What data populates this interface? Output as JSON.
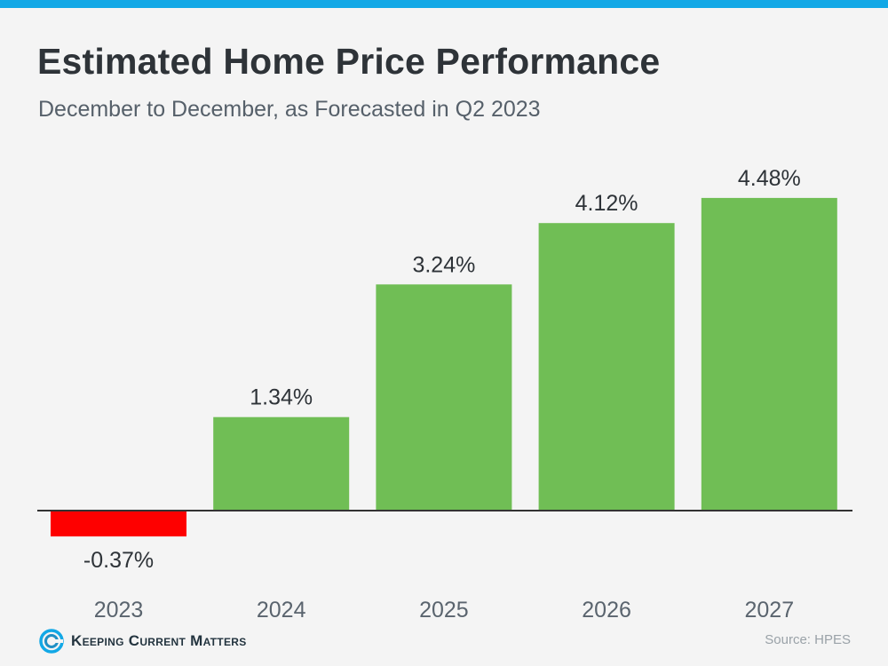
{
  "chart_data": {
    "type": "bar",
    "title": "Estimated Home Price Performance",
    "subtitle": "December to December, as Forecasted in Q2 2023",
    "categories": [
      "2023",
      "2024",
      "2025",
      "2026",
      "2027"
    ],
    "values": [
      -0.37,
      1.34,
      3.24,
      4.12,
      4.48
    ],
    "value_labels": [
      "-0.37%",
      "1.34%",
      "3.24%",
      "4.12%",
      "4.48%"
    ],
    "colors": {
      "positive": "#70be55",
      "negative": "#fe0000",
      "baseline": "#333333",
      "accent": "#12a8e6"
    },
    "ylim": [
      -0.37,
      4.48
    ],
    "grid": false,
    "legend": "none"
  },
  "footer": {
    "brand_name": "Keeping Current Matters",
    "brand_icon": "kcm-logo-icon",
    "source": "Source: HPES"
  }
}
